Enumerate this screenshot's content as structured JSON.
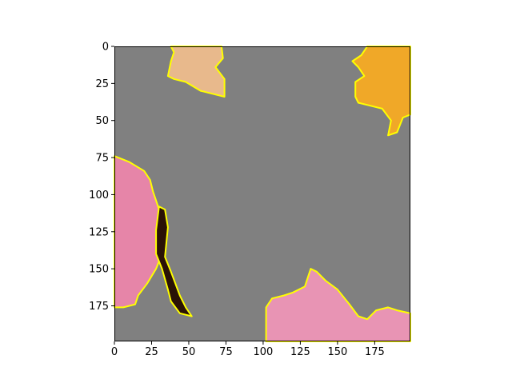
{
  "chart_data": {
    "type": "image",
    "title": "",
    "xlabel": "",
    "ylabel": "",
    "xlim": [
      0,
      199
    ],
    "ylim": [
      199,
      0
    ],
    "x_ticks": [
      0,
      25,
      50,
      75,
      100,
      125,
      150,
      175
    ],
    "y_ticks": [
      0,
      25,
      50,
      75,
      100,
      125,
      150,
      175
    ],
    "x_tick_labels": [
      "0",
      "25",
      "50",
      "75",
      "100",
      "125",
      "150",
      "175"
    ],
    "y_tick_labels": [
      "0",
      "25",
      "50",
      "75",
      "100",
      "125",
      "150",
      "175"
    ],
    "background_color": "#808080",
    "outline_color": "#ffff00",
    "regions": [
      {
        "name": "peach-petal-top",
        "fill": "#e8b98c",
        "points": [
          [
            38,
            0
          ],
          [
            72,
            0
          ],
          [
            73,
            8
          ],
          [
            68,
            14
          ],
          [
            74,
            22
          ],
          [
            74,
            34
          ],
          [
            66,
            32
          ],
          [
            58,
            30
          ],
          [
            48,
            24
          ],
          [
            40,
            22
          ],
          [
            36,
            20
          ],
          [
            38,
            10
          ],
          [
            40,
            4
          ]
        ]
      },
      {
        "name": "yellow-flower-top-right",
        "fill": "#f0a828",
        "points": [
          [
            170,
            0
          ],
          [
            199,
            0
          ],
          [
            199,
            46
          ],
          [
            194,
            48
          ],
          [
            190,
            58
          ],
          [
            184,
            60
          ],
          [
            186,
            50
          ],
          [
            180,
            42
          ],
          [
            172,
            40
          ],
          [
            164,
            38
          ],
          [
            162,
            34
          ],
          [
            162,
            24
          ],
          [
            168,
            20
          ],
          [
            164,
            14
          ],
          [
            160,
            10
          ],
          [
            166,
            6
          ]
        ]
      },
      {
        "name": "pink-petal-left",
        "fill": "#e685a8",
        "points": [
          [
            0,
            74
          ],
          [
            10,
            78
          ],
          [
            20,
            84
          ],
          [
            24,
            90
          ],
          [
            26,
            98
          ],
          [
            28,
            104
          ],
          [
            30,
            110
          ],
          [
            32,
            120
          ],
          [
            32,
            140
          ],
          [
            28,
            150
          ],
          [
            22,
            160
          ],
          [
            16,
            168
          ],
          [
            14,
            174
          ],
          [
            6,
            176
          ],
          [
            0,
            176
          ]
        ]
      },
      {
        "name": "dark-stem",
        "fill": "#2a1206",
        "points": [
          [
            30,
            108
          ],
          [
            34,
            110
          ],
          [
            36,
            122
          ],
          [
            34,
            142
          ],
          [
            38,
            152
          ],
          [
            44,
            168
          ],
          [
            48,
            176
          ],
          [
            52,
            182
          ],
          [
            44,
            180
          ],
          [
            38,
            172
          ],
          [
            36,
            164
          ],
          [
            32,
            150
          ],
          [
            28,
            140
          ],
          [
            28,
            124
          ]
        ]
      },
      {
        "name": "pink-petal-bottom",
        "fill": "#e894b4",
        "points": [
          [
            102,
            199
          ],
          [
            102,
            176
          ],
          [
            106,
            170
          ],
          [
            114,
            168
          ],
          [
            120,
            166
          ],
          [
            128,
            162
          ],
          [
            132,
            150
          ],
          [
            136,
            152
          ],
          [
            142,
            158
          ],
          [
            150,
            164
          ],
          [
            158,
            174
          ],
          [
            164,
            182
          ],
          [
            170,
            184
          ],
          [
            176,
            178
          ],
          [
            184,
            176
          ],
          [
            190,
            178
          ],
          [
            199,
            180
          ],
          [
            199,
            199
          ]
        ]
      }
    ]
  }
}
